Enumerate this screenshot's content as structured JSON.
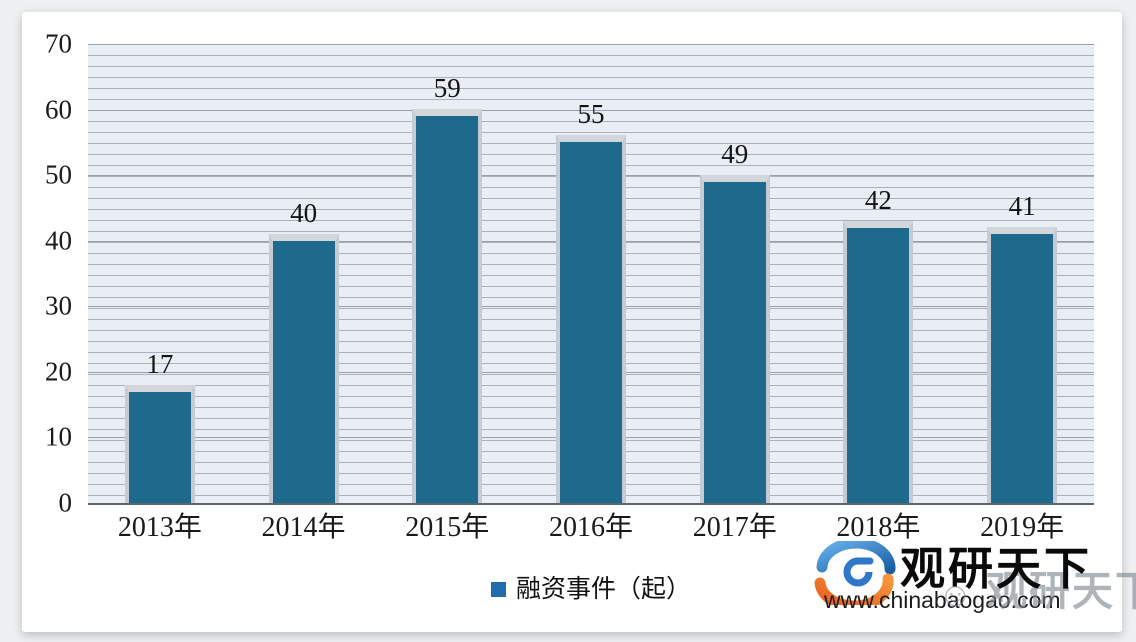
{
  "chart_data": {
    "type": "bar",
    "title": "",
    "categories": [
      "2013年",
      "2014年",
      "2015年",
      "2016年",
      "2017年",
      "2018年",
      "2019年"
    ],
    "values": [
      17,
      40,
      59,
      55,
      49,
      42,
      41
    ],
    "series_name": "融资事件（起）",
    "xlabel": "",
    "ylabel": "",
    "ylim": [
      0,
      70
    ],
    "yticks": [
      0,
      10,
      20,
      30,
      40,
      50,
      60,
      70
    ],
    "grid": "fine-horizontal-stripes",
    "legend_position": "bottom-center",
    "bar_color": "#1e6a8d"
  },
  "legend": {
    "label": "融资事件（起）",
    "swatch_color": "#1f6dad"
  },
  "watermark": {
    "brand": "观研天下",
    "url": "www.chinabaogao.com",
    "ghost_text": "观研天下",
    "ghost_face_glyph": "☺"
  },
  "colors": {
    "bar": "#1e6a8d",
    "bar_cap": "#d3d7dc",
    "bar_side_shadow": "#c6cbd1",
    "plot_stripe_line": "#a8b2bd",
    "plot_stripe_fill": "#e9eef4",
    "axis_line": "#5a6570",
    "text": "#1a1a1a",
    "logo_blue": "#2f7fd0",
    "logo_orange": "#f07a2a"
  }
}
